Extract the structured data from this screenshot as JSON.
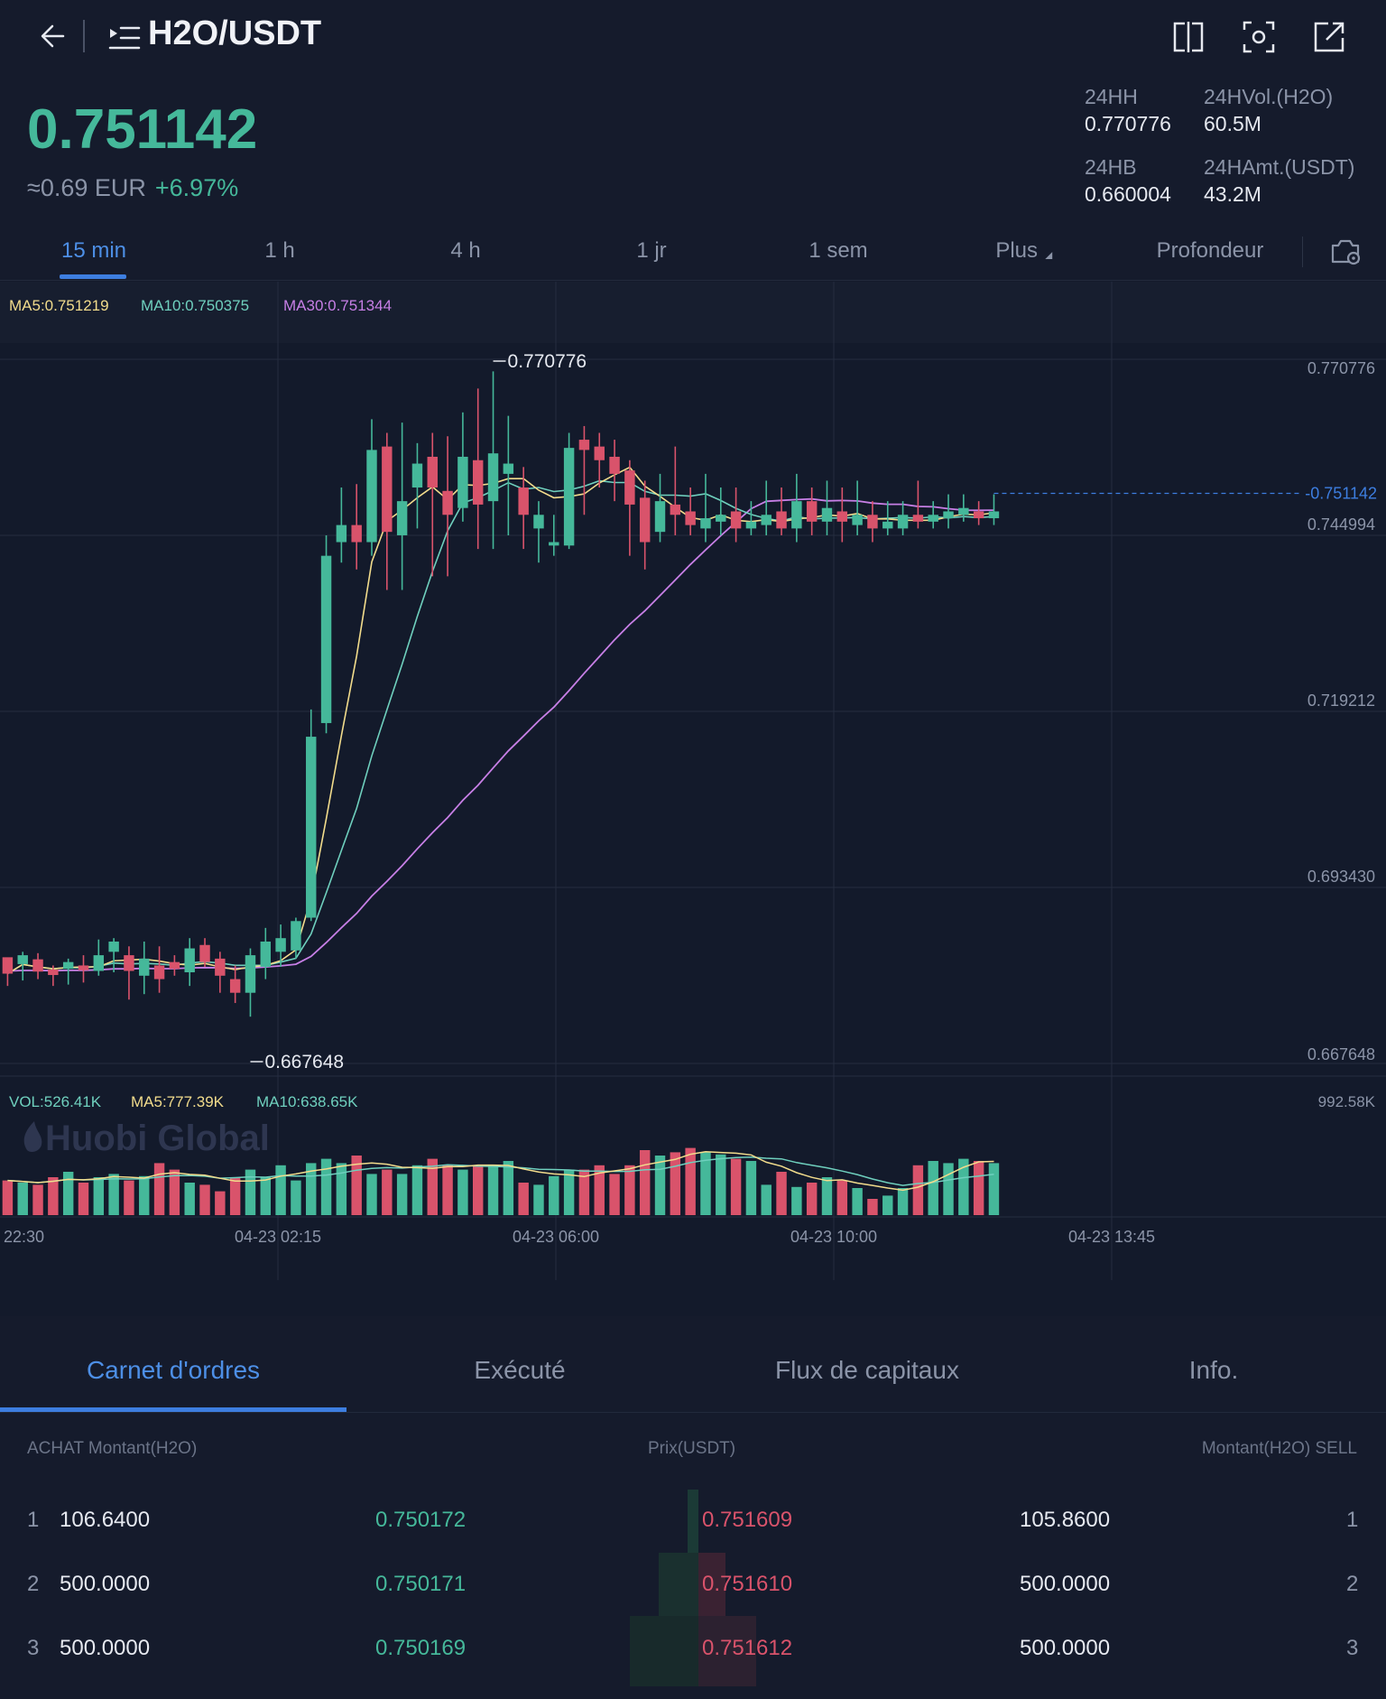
{
  "header": {
    "pair": "H2O/USDT",
    "icons": [
      "back-arrow-icon",
      "menu-list-icon",
      "split-screen-icon",
      "screenshot-icon",
      "share-external-icon"
    ]
  },
  "ticker": {
    "last_price": "0.751142",
    "fiat_approx": "≈0.69 EUR",
    "change_pct": "+6.97%",
    "high_label": "24HH",
    "high_value": "0.770776",
    "low_label": "24HB",
    "low_value": "0.660004",
    "vol_label": "24HVol.(H2O)",
    "vol_value": "60.5M",
    "amt_label": "24HAmt.(USDT)",
    "amt_value": "43.2M"
  },
  "intervals": {
    "items": [
      "15 min",
      "1 h",
      "4 h",
      "1 jr",
      "1 sem",
      "Plus",
      "Profondeur"
    ],
    "active": "15 min"
  },
  "chart_labels": {
    "ma5": "MA5:0.751219",
    "ma10": "MA10:0.750375",
    "ma30": "MA30:0.751344",
    "vol": "VOL:526.41K",
    "vol_ma5": "MA5:777.39K",
    "vol_ma10": "MA10:638.65K",
    "vol_axis_max": "992.58K",
    "max_mark": "0.770776",
    "min_mark": "0.667648",
    "current_price_tag": "0.751142",
    "watermark": "Huobi Global"
  },
  "chart_data": {
    "type": "candlestick",
    "y_ticks": [
      "0.770776",
      "0.744994",
      "0.719212",
      "0.693430",
      "0.667648"
    ],
    "x_ticks": [
      "22:30",
      "04-23 02:15",
      "04-23 06:00",
      "04-23 10:00",
      "04-23 13:45"
    ],
    "ylim": [
      0.667648,
      0.770776
    ],
    "colors": {
      "up": "#45b89a",
      "down": "#d9536b",
      "ma5": "#f2dc8c",
      "ma10": "#6fd0be",
      "ma30": "#c77fe6",
      "price_line": "#3d7ee0"
    },
    "candles": [
      [
        0.6832,
        0.6808,
        0.6825,
        0.679
      ],
      [
        0.6822,
        0.6835,
        0.684,
        0.6798
      ],
      [
        0.6829,
        0.6811,
        0.6838,
        0.68
      ],
      [
        0.6814,
        0.6806,
        0.682,
        0.679
      ],
      [
        0.6815,
        0.6825,
        0.683,
        0.6792
      ],
      [
        0.682,
        0.6813,
        0.6835,
        0.6795
      ],
      [
        0.6812,
        0.6835,
        0.6858,
        0.6805
      ],
      [
        0.684,
        0.6855,
        0.686,
        0.681
      ],
      [
        0.6835,
        0.6812,
        0.6848,
        0.677
      ],
      [
        0.6805,
        0.683,
        0.6855,
        0.6778
      ],
      [
        0.682,
        0.68,
        0.6848,
        0.678
      ],
      [
        0.6825,
        0.6815,
        0.6835,
        0.6805
      ],
      [
        0.681,
        0.6845,
        0.686,
        0.679
      ],
      [
        0.685,
        0.6825,
        0.686,
        0.6818
      ],
      [
        0.683,
        0.6805,
        0.684,
        0.678
      ],
      [
        0.68,
        0.678,
        0.682,
        0.6765
      ],
      [
        0.678,
        0.6835,
        0.6845,
        0.6745
      ],
      [
        0.6818,
        0.6855,
        0.6875,
        0.68
      ],
      [
        0.684,
        0.686,
        0.688,
        0.6818
      ],
      [
        0.6842,
        0.6885,
        0.689,
        0.683
      ],
      [
        0.689,
        0.7155,
        0.7195,
        0.6885
      ],
      [
        0.7175,
        0.742,
        0.745,
        0.716
      ],
      [
        0.744,
        0.7465,
        0.752,
        0.741
      ],
      [
        0.7465,
        0.744,
        0.7525,
        0.74
      ],
      [
        0.744,
        0.7575,
        0.762,
        0.742
      ],
      [
        0.758,
        0.7455,
        0.76,
        0.737
      ],
      [
        0.745,
        0.75,
        0.7615,
        0.737
      ],
      [
        0.752,
        0.7555,
        0.7585,
        0.746
      ],
      [
        0.7565,
        0.752,
        0.76,
        0.739
      ],
      [
        0.7515,
        0.748,
        0.7595,
        0.739
      ],
      [
        0.749,
        0.7565,
        0.763,
        0.747
      ],
      [
        0.756,
        0.7495,
        0.7665,
        0.743
      ],
      [
        0.75,
        0.757,
        0.769,
        0.743
      ],
      [
        0.754,
        0.7555,
        0.7625,
        0.745
      ],
      [
        0.752,
        0.748,
        0.755,
        0.743
      ],
      [
        0.746,
        0.748,
        0.75,
        0.741
      ],
      [
        0.7435,
        0.744,
        0.748,
        0.742
      ],
      [
        0.7435,
        0.7578,
        0.76,
        0.743
      ],
      [
        0.759,
        0.7575,
        0.761,
        0.748
      ],
      [
        0.758,
        0.756,
        0.76,
        0.752
      ],
      [
        0.7565,
        0.754,
        0.759,
        0.75
      ],
      [
        0.7545,
        0.7495,
        0.756,
        0.742
      ],
      [
        0.7505,
        0.744,
        0.753,
        0.74
      ],
      [
        0.7455,
        0.75,
        0.754,
        0.744
      ],
      [
        0.7495,
        0.748,
        0.758,
        0.745
      ],
      [
        0.7485,
        0.7465,
        0.752,
        0.745
      ],
      [
        0.746,
        0.7475,
        0.754,
        0.744
      ],
      [
        0.747,
        0.748,
        0.752,
        0.745
      ],
      [
        0.7485,
        0.746,
        0.752,
        0.744
      ],
      [
        0.746,
        0.747,
        0.75,
        0.745
      ],
      [
        0.7465,
        0.748,
        0.753,
        0.745
      ],
      [
        0.7485,
        0.746,
        0.752,
        0.745
      ],
      [
        0.746,
        0.75,
        0.754,
        0.744
      ],
      [
        0.75,
        0.747,
        0.752,
        0.745
      ],
      [
        0.747,
        0.749,
        0.753,
        0.745
      ],
      [
        0.7485,
        0.747,
        0.752,
        0.744
      ],
      [
        0.7465,
        0.748,
        0.753,
        0.745
      ],
      [
        0.748,
        0.746,
        0.75,
        0.744
      ],
      [
        0.746,
        0.747,
        0.75,
        0.745
      ],
      [
        0.746,
        0.748,
        0.75,
        0.745
      ],
      [
        0.748,
        0.747,
        0.753,
        0.746
      ],
      [
        0.747,
        0.748,
        0.75,
        0.746
      ],
      [
        0.7475,
        0.7485,
        0.751,
        0.746
      ],
      [
        0.748,
        0.749,
        0.751,
        0.747
      ],
      [
        0.7485,
        0.7475,
        0.75,
        0.7465
      ],
      [
        0.7475,
        0.7485,
        0.751,
        0.7465
      ]
    ],
    "volume": [
      0.32,
      0.3,
      0.28,
      0.35,
      0.4,
      0.3,
      0.35,
      0.38,
      0.32,
      0.36,
      0.48,
      0.42,
      0.3,
      0.28,
      0.22,
      0.35,
      0.42,
      0.35,
      0.46,
      0.32,
      0.48,
      0.52,
      0.48,
      0.55,
      0.38,
      0.42,
      0.38,
      0.46,
      0.52,
      0.46,
      0.42,
      0.45,
      0.46,
      0.5,
      0.3,
      0.28,
      0.36,
      0.42,
      0.42,
      0.46,
      0.38,
      0.46,
      0.6,
      0.55,
      0.58,
      0.62,
      0.58,
      0.56,
      0.52,
      0.5,
      0.28,
      0.4,
      0.26,
      0.3,
      0.35,
      0.32,
      0.25,
      0.15,
      0.18,
      0.25,
      0.46,
      0.5,
      0.48,
      0.52,
      0.5,
      0.48
    ]
  },
  "bottom_tabs": {
    "items": [
      "Carnet d'ordres",
      "Exécuté",
      "Flux de capitaux",
      "Info."
    ],
    "active": "Carnet d'ordres"
  },
  "orderbook": {
    "head_left": "ACHAT  Montant(H2O)",
    "head_mid": "Prix(USDT)",
    "head_right": "Montant(H2O)  SELL",
    "rows": [
      {
        "idx": "1",
        "bid_amt": "106.6400",
        "bid_price": "0.750172",
        "ask_price": "0.751609",
        "ask_amt": "105.8600",
        "idx_r": "1"
      },
      {
        "idx": "2",
        "bid_amt": "500.0000",
        "bid_price": "0.750171",
        "ask_price": "0.751610",
        "ask_amt": "500.0000",
        "idx_r": "2"
      },
      {
        "idx": "3",
        "bid_amt": "500.0000",
        "bid_price": "0.750169",
        "ask_price": "0.751612",
        "ask_amt": "500.0000",
        "idx_r": "3"
      }
    ]
  }
}
